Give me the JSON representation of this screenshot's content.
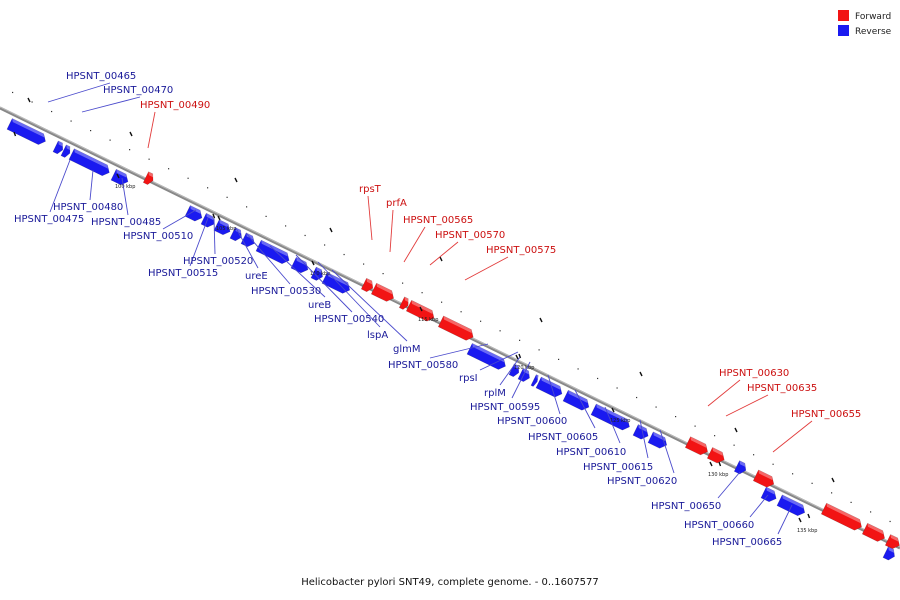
{
  "caption": "Helicobacter pylori SNT49, complete genome. - 0..1607577",
  "colors": {
    "forward": "#f21414",
    "reverse": "#1a1af0",
    "forward_label": "#cc1111",
    "reverse_label": "#1a1a99",
    "backbone": "#888888"
  },
  "legend": [
    {
      "label": "Forward",
      "strand": "forward"
    },
    {
      "label": "Reverse",
      "strand": "reverse"
    }
  ],
  "scale_ticks": [
    "100 kbp",
    "105 kbp",
    "110 kbp",
    "115 kbp",
    "120 kbp",
    "125 kbp",
    "130 kbp",
    "135 kbp"
  ],
  "gene_labels": {
    "forward": [
      "HPSNT_00490",
      "rpsT",
      "prfA",
      "HPSNT_00565",
      "HPSNT_00570",
      "HPSNT_00575",
      "HPSNT_00630",
      "HPSNT_00635",
      "HPSNT_00655"
    ],
    "reverse": [
      "HPSNT_00465",
      "HPSNT_00470",
      "HPSNT_00475",
      "HPSNT_00480",
      "HPSNT_00485",
      "HPSNT_00510",
      "HPSNT_00515",
      "HPSNT_00520",
      "ureE",
      "HPSNT_00530",
      "ureB",
      "HPSNT_00540",
      "lspA",
      "glmM",
      "HPSNT_00580",
      "rpsI",
      "rplM",
      "HPSNT_00595",
      "HPSNT_00600",
      "HPSNT_00605",
      "HPSNT_00610",
      "HPSNT_00615",
      "HPSNT_00620",
      "HPSNT_00650",
      "HPSNT_00660",
      "HPSNT_00665"
    ]
  }
}
